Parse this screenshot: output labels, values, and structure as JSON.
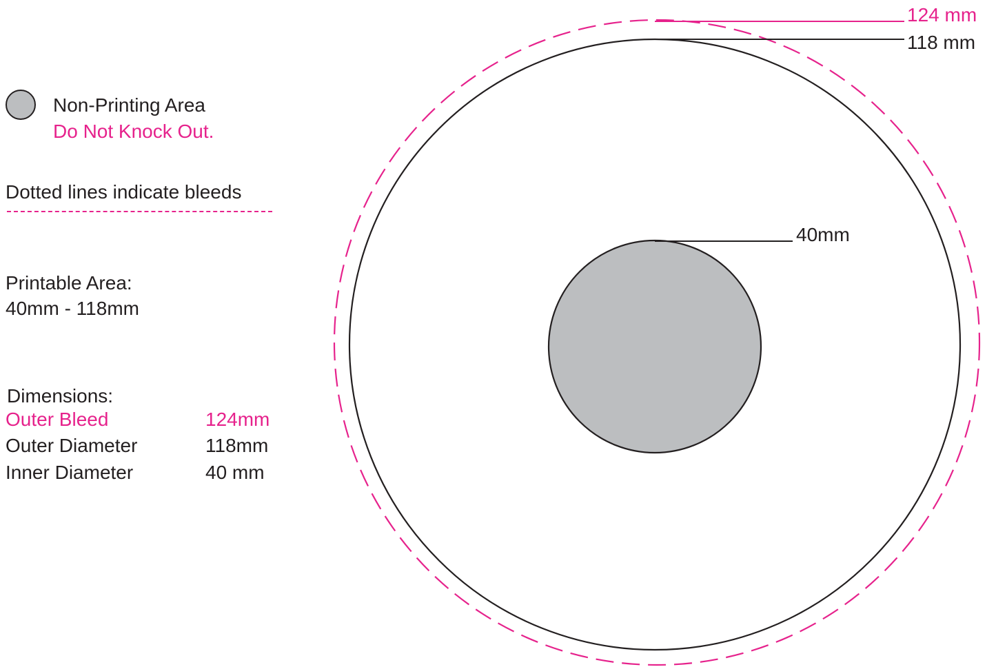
{
  "legend": {
    "non_printing_label": "Non-Printing Area",
    "do_not_knock_out": "Do Not Knock Out.",
    "dotted_lines_note": "Dotted lines indicate bleeds"
  },
  "printable": {
    "heading": "Printable Area:",
    "range": "40mm - 118mm"
  },
  "dimensions": {
    "heading": "Dimensions:",
    "rows": [
      {
        "label": "Outer Bleed",
        "value": "124mm"
      },
      {
        "label": "Outer Diameter",
        "value": "118mm"
      },
      {
        "label": "Inner  Diameter",
        "value": "40 mm"
      }
    ]
  },
  "callouts": {
    "outer_bleed": "124 mm",
    "outer_diameter": "118 mm",
    "inner_diameter": "40mm"
  },
  "colors": {
    "bleed": "#e6228c",
    "outline": "#231f20",
    "non_printing_fill": "#bcbec0",
    "background": "#ffffff"
  }
}
